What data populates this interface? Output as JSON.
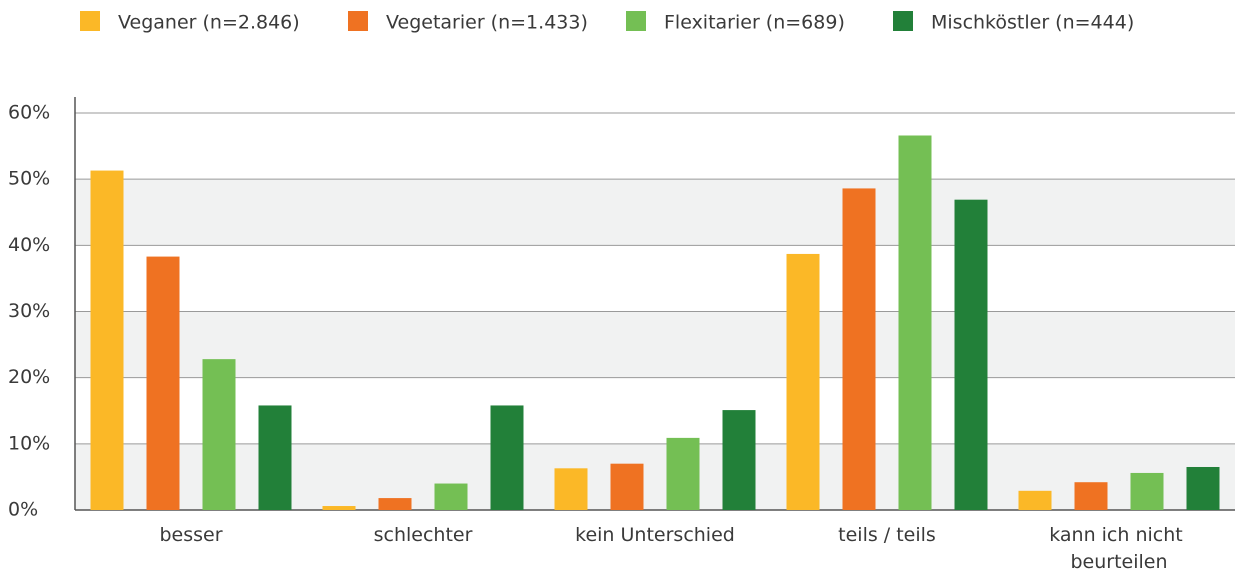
{
  "chart_data": {
    "type": "bar",
    "categories": [
      "besser",
      "schlechter",
      "kein Unterschied",
      "teils / teils",
      "kann ich nicht beurteilen"
    ],
    "series": [
      {
        "name": "Veganer (n=2.846)",
        "color": "#fbb827",
        "values": [
          51.3,
          0.6,
          6.3,
          38.7,
          2.9
        ]
      },
      {
        "name": "Vegetarier (n=1.433)",
        "color": "#ef7222",
        "values": [
          38.3,
          1.8,
          7.0,
          48.6,
          4.2
        ]
      },
      {
        "name": "Flexitarier (n=689)",
        "color": "#74bf54",
        "values": [
          22.8,
          4.0,
          10.9,
          56.6,
          5.6
        ]
      },
      {
        "name": "Mischköstler (n=444)",
        "color": "#228039",
        "values": [
          15.8,
          15.8,
          15.1,
          46.9,
          6.5
        ]
      }
    ],
    "ylim": [
      0,
      60
    ],
    "yticks": [
      {
        "value": 0,
        "label": "0%"
      },
      {
        "value": 10,
        "label": "10%"
      },
      {
        "value": 20,
        "label": "20%"
      },
      {
        "value": 30,
        "label": "30%"
      },
      {
        "value": 40,
        "label": "40%"
      },
      {
        "value": 50,
        "label": "50%"
      },
      {
        "value": 60,
        "label": "60%"
      }
    ],
    "grid": true,
    "legend": "top"
  }
}
